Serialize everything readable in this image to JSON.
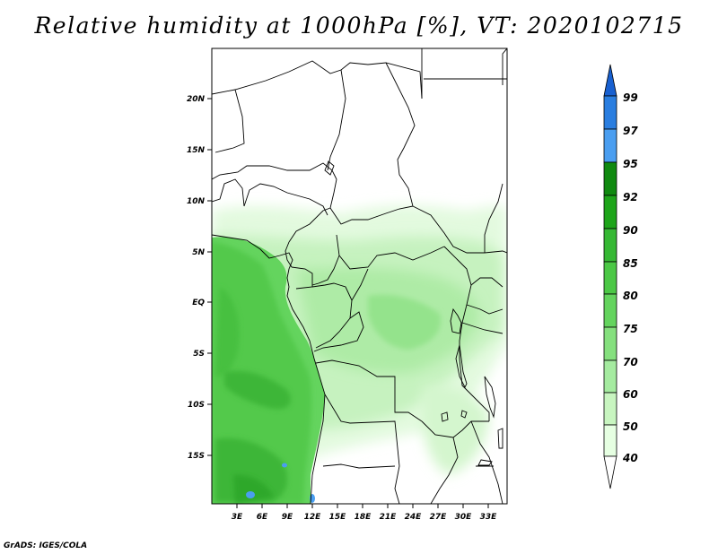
{
  "title": "Relative humidity at 1000hPa [%], VT: 2020102715",
  "credit": "GrADS: IGES/COLA",
  "map": {
    "lat_labels": [
      "20N",
      "15N",
      "10N",
      "5N",
      "EQ",
      "5S",
      "10S",
      "15S"
    ],
    "lon_labels": [
      "3E",
      "6E",
      "9E",
      "12E",
      "15E",
      "18E",
      "21E",
      "24E",
      "27E",
      "30E",
      "33E"
    ],
    "variable": "Relative humidity",
    "level": "1000hPa",
    "unit": "%",
    "valid_time": "2020102715"
  },
  "colorbar": {
    "levels": [
      "40",
      "50",
      "60",
      "70",
      "75",
      "80",
      "85",
      "90",
      "92",
      "95",
      "97",
      "99"
    ],
    "colors": [
      "#ffffff",
      "#e6ffe2",
      "#c8f5c0",
      "#a5eba0",
      "#85e07e",
      "#64d45e",
      "#4cc846",
      "#36b834",
      "#1ea51a",
      "#108a10",
      "#4a9ef0",
      "#2a7ee0",
      "#1860d0"
    ]
  }
}
